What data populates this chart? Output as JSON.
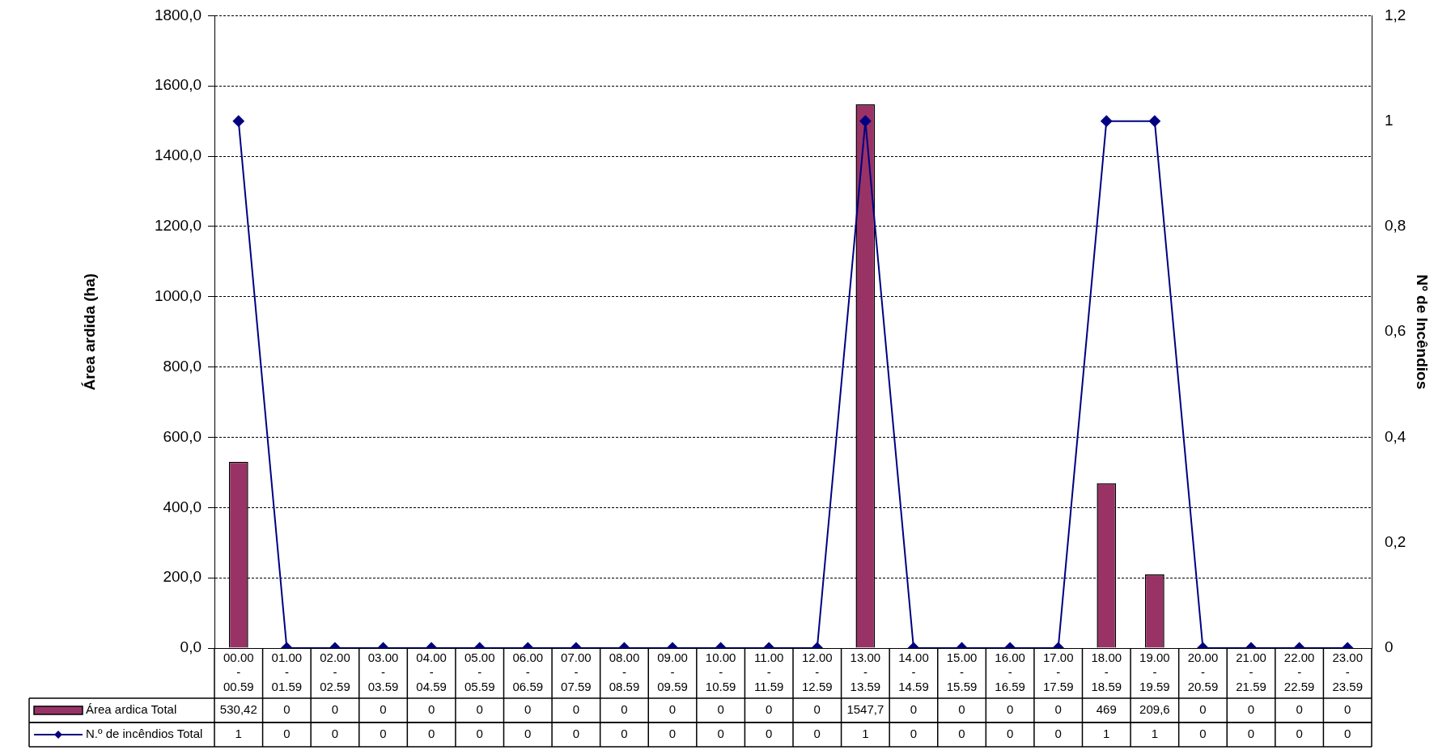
{
  "chart_data": {
    "type": "bar",
    "categories": [
      "00.00 - 00.59",
      "01.00 - 01.59",
      "02.00 - 02.59",
      "03.00 - 03.59",
      "04.00 - 04.59",
      "05.00 - 05.59",
      "06.00 - 06.59",
      "07.00 - 07.59",
      "08.00 - 08.59",
      "09.00 - 09.59",
      "10.00 - 10.59",
      "11.00 - 11.59",
      "12.00 - 12.59",
      "13.00 - 13.59",
      "14.00 - 14.59",
      "15.00 - 15.59",
      "16.00 - 16.59",
      "17.00 - 17.59",
      "18.00 - 18.59",
      "19.00 - 19.59",
      "20.00 - 20.59",
      "21.00 - 21.59",
      "22.00 - 22.59",
      "23.00 - 23.59"
    ],
    "series": [
      {
        "name": "Área ardica Total",
        "color": "#993366",
        "values": [
          530.42,
          0,
          0,
          0,
          0,
          0,
          0,
          0,
          0,
          0,
          0,
          0,
          0,
          1547.7,
          0,
          0,
          0,
          0,
          469,
          209.6,
          0,
          0,
          0,
          0
        ],
        "value_labels": [
          "530,42",
          "0",
          "0",
          "0",
          "0",
          "0",
          "0",
          "0",
          "0",
          "0",
          "0",
          "0",
          "0",
          "1547,7",
          "0",
          "0",
          "0",
          "0",
          "469",
          "209,6",
          "0",
          "0",
          "0",
          "0"
        ]
      },
      {
        "name": "N.º de incêndios Total",
        "type": "line",
        "axis": "y2",
        "color": "#000080",
        "values": [
          1,
          0,
          0,
          0,
          0,
          0,
          0,
          0,
          0,
          0,
          0,
          0,
          0,
          1,
          0,
          0,
          0,
          0,
          1,
          1,
          0,
          0,
          0,
          0
        ],
        "value_labels": [
          "1",
          "0",
          "0",
          "0",
          "0",
          "0",
          "0",
          "0",
          "0",
          "0",
          "0",
          "0",
          "0",
          "1",
          "0",
          "0",
          "0",
          "0",
          "1",
          "1",
          "0",
          "0",
          "0",
          "0"
        ]
      }
    ],
    "ylabel": "Área ardida (ha)",
    "y2label": "Nº de Incêndios",
    "ylim": [
      0,
      1800
    ],
    "yticks": [
      {
        "value": 0,
        "label": "0,0"
      },
      {
        "value": 200,
        "label": "200,0"
      },
      {
        "value": 400,
        "label": "400,0"
      },
      {
        "value": 600,
        "label": "600,0"
      },
      {
        "value": 800,
        "label": "800,0"
      },
      {
        "value": 1000,
        "label": "1000,0"
      },
      {
        "value": 1200,
        "label": "1200,0"
      },
      {
        "value": 1400,
        "label": "1400,0"
      },
      {
        "value": 1600,
        "label": "1600,0"
      },
      {
        "value": 1800,
        "label": "1800,0"
      }
    ],
    "y2lim": [
      0,
      1.2
    ],
    "y2ticks": [
      0,
      {
        "value": 0.2,
        "label": "0,2"
      },
      {
        "value": 0.4,
        "label": "0,4"
      },
      {
        "value": 0.6,
        "label": "0,6"
      },
      {
        "value": 0.8,
        "label": "0,8"
      },
      1,
      {
        "value": 1.2,
        "label": "1,2"
      }
    ],
    "grid": "y",
    "legend": "bottom",
    "marker": "diamond",
    "line_style": "solid"
  }
}
